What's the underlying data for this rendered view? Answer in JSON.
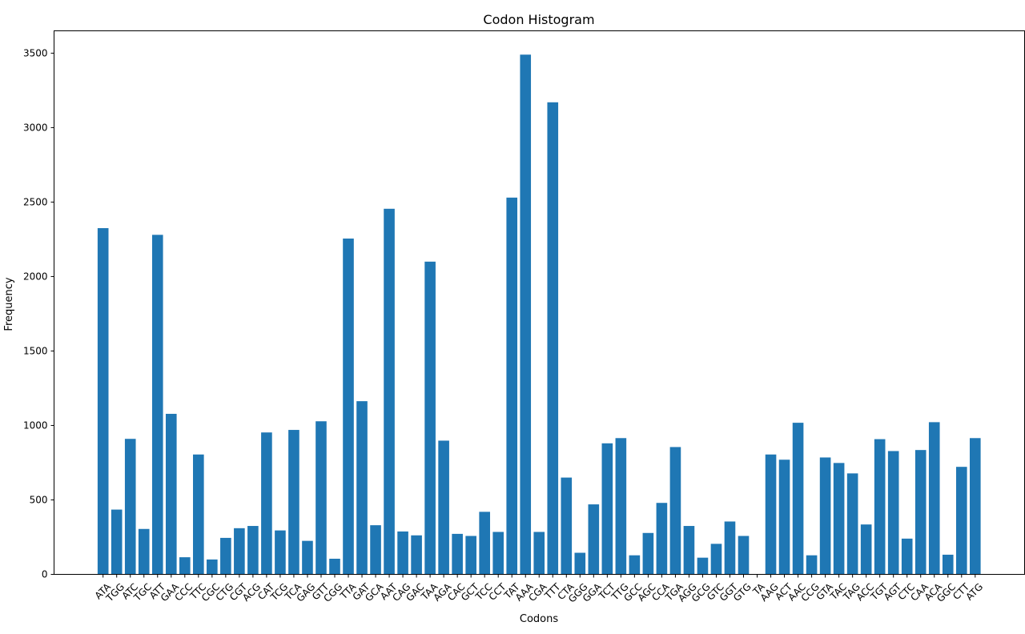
{
  "chart_data": {
    "type": "bar",
    "title": "Codon Histogram",
    "xlabel": "Codons",
    "ylabel": "Frequency",
    "ylim": [
      0,
      3650
    ],
    "yticks": [
      0,
      500,
      1000,
      1500,
      2000,
      2500,
      3000,
      3500
    ],
    "grid": false,
    "bar_color": "#1f77b4",
    "categories": [
      "ATA",
      "TGG",
      "ATC",
      "TGC",
      "ATT",
      "GAA",
      "CCC",
      "TTC",
      "CGC",
      "CTG",
      "CGT",
      "ACG",
      "CAT",
      "TCG",
      "TCA",
      "GAG",
      "GTT",
      "CGG",
      "TTA",
      "GAT",
      "GCA",
      "AAT",
      "CAG",
      "GAC",
      "TAA",
      "AGA",
      "CAC",
      "GCT",
      "TCC",
      "CCT",
      "TAT",
      "AAA",
      "CGA",
      "TTT",
      "CTA",
      "GGG",
      "GGA",
      "TCT",
      "TTG",
      "GCC",
      "AGC",
      "CCA",
      "TGA",
      "AGG",
      "GCG",
      "GTC",
      "GGT",
      "GTG",
      "TA",
      "AAG",
      "ACT",
      "AAC",
      "CCG",
      "GTA",
      "TAC",
      "TAG",
      "ACC",
      "TGT",
      "AGT",
      "CTC",
      "CAA",
      "ACA",
      "GGC",
      "CTT",
      "ATG"
    ],
    "values": [
      2325,
      435,
      910,
      305,
      2280,
      1078,
      115,
      805,
      100,
      245,
      310,
      325,
      953,
      295,
      970,
      225,
      1028,
      105,
      2255,
      1163,
      330,
      2455,
      288,
      262,
      2100,
      898,
      272,
      258,
      420,
      285,
      2530,
      3490,
      285,
      3170,
      650,
      145,
      470,
      880,
      915,
      128,
      278,
      480,
      855,
      325,
      112,
      205,
      355,
      258,
      0,
      805,
      770,
      1018,
      128,
      785,
      748,
      678,
      335,
      908,
      828,
      240,
      835,
      1022,
      132,
      722,
      915
    ]
  }
}
